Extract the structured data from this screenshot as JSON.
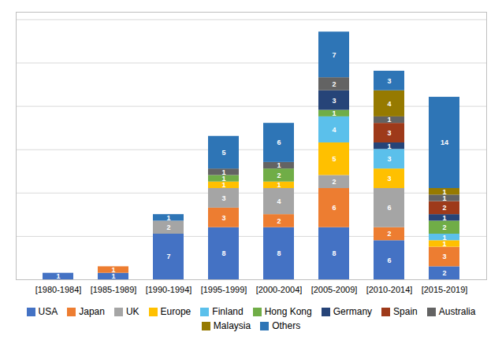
{
  "chart_data": {
    "type": "bar",
    "stacked": true,
    "categories": [
      "[1980-1984]",
      "[1985-1989]",
      "[1990-1994]",
      "[1995-1999]",
      "[2000-2004]",
      "[2005-2009]",
      "[2010-2014]",
      "[2015-2019]"
    ],
    "series": [
      {
        "name": "USA",
        "color": "#4472C4",
        "values": [
          1,
          1,
          7,
          8,
          8,
          8,
          6,
          2
        ]
      },
      {
        "name": "Japan",
        "color": "#ED7D31",
        "values": [
          0,
          1,
          0,
          3,
          2,
          6,
          2,
          3
        ]
      },
      {
        "name": "UK",
        "color": "#A5A5A5",
        "values": [
          0,
          0,
          2,
          3,
          4,
          2,
          6,
          0
        ]
      },
      {
        "name": "Europe",
        "color": "#FFC000",
        "values": [
          0,
          0,
          0,
          1,
          1,
          5,
          3,
          1
        ]
      },
      {
        "name": "Finland",
        "color": "#5BC0EB",
        "values": [
          0,
          0,
          0,
          0,
          0,
          4,
          3,
          1
        ]
      },
      {
        "name": "Hong Kong",
        "color": "#70AD47",
        "values": [
          0,
          0,
          0,
          1,
          2,
          1,
          0,
          2
        ]
      },
      {
        "name": "Germany",
        "color": "#264478",
        "values": [
          0,
          0,
          0,
          0,
          0,
          3,
          1,
          1
        ]
      },
      {
        "name": "Spain",
        "color": "#9E3A1A",
        "values": [
          0,
          0,
          0,
          0,
          0,
          0,
          3,
          2
        ]
      },
      {
        "name": "Australia",
        "color": "#636363",
        "values": [
          0,
          0,
          0,
          1,
          1,
          2,
          1,
          1
        ]
      },
      {
        "name": "Malaysia",
        "color": "#967A00",
        "values": [
          0,
          0,
          0,
          0,
          0,
          0,
          4,
          1
        ]
      },
      {
        "name": "Others",
        "color": "#2E75B6",
        "values": [
          0,
          0,
          1,
          5,
          6,
          7,
          3,
          14
        ]
      }
    ],
    "ylim": [
      0,
      41.04
    ],
    "yticks": [
      0,
      6.65,
      13.3,
      19.95,
      26.6,
      33.25,
      39.9
    ],
    "grid": true,
    "tick_labels": "x",
    "data_labels": true,
    "legend": "bottom"
  }
}
